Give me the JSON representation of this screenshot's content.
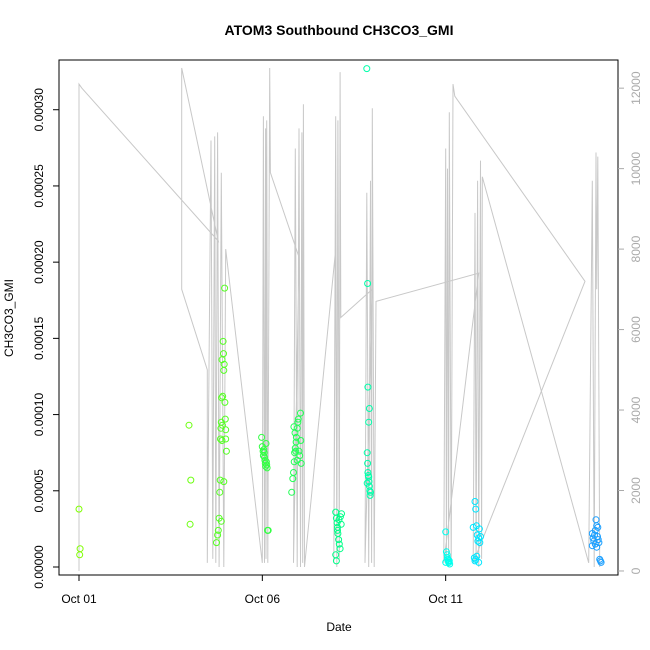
{
  "chart_data": {
    "type": "scatter",
    "title": "ATOM3 Southbound CH3CO3_GMI",
    "xlabel": "Date",
    "ylabel": "CH3CO3_GMI",
    "x_unit": "day of October 2017",
    "xlim": [
      1,
      15.7
    ],
    "ylim": [
      0,
      0.00033
    ],
    "y2lim": [
      -100,
      12700
    ],
    "grid": false,
    "x_ticks": [
      {
        "value": 1,
        "label": "Oct 01"
      },
      {
        "value": 6,
        "label": "Oct 06"
      },
      {
        "value": 11,
        "label": "Oct 11"
      }
    ],
    "y_ticks": [
      {
        "value": 0,
        "label": "0.00000"
      },
      {
        "value": 5e-05,
        "label": "0.00005"
      },
      {
        "value": 0.0001,
        "label": "0.00010"
      },
      {
        "value": 0.00015,
        "label": "0.00015"
      },
      {
        "value": 0.0002,
        "label": "0.00020"
      },
      {
        "value": 0.00025,
        "label": "0.00025"
      },
      {
        "value": 0.0003,
        "label": "0.00030"
      }
    ],
    "y2_ticks": [
      {
        "value": 0,
        "label": "0"
      },
      {
        "value": 2000,
        "label": "2000"
      },
      {
        "value": 4000,
        "label": "4000"
      },
      {
        "value": 6000,
        "label": "6000"
      },
      {
        "value": 8000,
        "label": "8000"
      },
      {
        "value": 10000,
        "label": "10000"
      },
      {
        "value": 12000,
        "label": "12000"
      }
    ],
    "colors": {
      "altitude_line": "#c8c8c8",
      "right_axis": "#aaaaaa",
      "point_palette": [
        "#7fff00",
        "#33ff33",
        "#00ff66",
        "#00ffbb",
        "#00ffff",
        "#00e0ff",
        "#1aa3ff"
      ]
    },
    "series": [
      {
        "color": "#7fff00",
        "points": [
          [
            1.0,
            3.8e-05
          ],
          [
            1.03,
            1.2e-05
          ],
          [
            1.02,
            8e-06
          ]
        ]
      },
      {
        "color": "#6cff10",
        "points": [
          [
            4.0,
            9.3e-05
          ],
          [
            4.05,
            5.7e-05
          ],
          [
            4.03,
            2.8e-05
          ]
        ]
      },
      {
        "color": "#55ff22",
        "points": [
          [
            4.75,
            1.6e-05
          ],
          [
            4.78,
            2.1e-05
          ],
          [
            4.8,
            2.4e-05
          ],
          [
            4.82,
            3.2e-05
          ],
          [
            4.84,
            4.9e-05
          ],
          [
            4.85,
            5.7e-05
          ],
          [
            4.86,
            8.4e-05
          ],
          [
            4.87,
            9.1e-05
          ],
          [
            4.88,
            9.5e-05
          ],
          [
            4.89,
            0.000111
          ],
          [
            4.9,
            0.000136
          ],
          [
            4.91,
            9.3e-05
          ],
          [
            4.92,
            0.000112
          ],
          [
            4.93,
            0.000148
          ],
          [
            4.94,
            0.00014
          ],
          [
            4.95,
            0.000129
          ],
          [
            4.96,
            0.000133
          ],
          [
            4.97,
            0.000183
          ],
          [
            4.98,
            0.000108
          ],
          [
            4.99,
            9.7e-05
          ],
          [
            5.0,
            8.4e-05
          ],
          [
            5.02,
            7.6e-05
          ],
          [
            4.9,
            8.3e-05
          ],
          [
            5.0,
            9e-05
          ],
          [
            4.95,
            5.6e-05
          ],
          [
            4.88,
            3e-05
          ]
        ]
      },
      {
        "color": "#33ff44",
        "points": [
          [
            5.98,
            8.5e-05
          ],
          [
            6.0,
            7.9e-05
          ],
          [
            6.02,
            7.6e-05
          ],
          [
            6.04,
            7.7e-05
          ],
          [
            6.05,
            7.5e-05
          ],
          [
            6.06,
            7.2e-05
          ],
          [
            6.07,
            7e-05
          ],
          [
            6.08,
            6.8e-05
          ],
          [
            6.09,
            6.6e-05
          ],
          [
            6.1,
            8.1e-05
          ],
          [
            6.11,
            6.9e-05
          ],
          [
            6.12,
            6.7e-05
          ],
          [
            6.13,
            6.5e-05
          ],
          [
            6.03,
            7.3e-05
          ],
          [
            6.14,
            2.4e-05
          ],
          [
            6.16,
            2.4e-05
          ]
        ]
      },
      {
        "color": "#22ff55",
        "points": [
          [
            6.8,
            4.9e-05
          ],
          [
            6.83,
            5.8e-05
          ],
          [
            6.85,
            6.2e-05
          ],
          [
            6.87,
            6.9e-05
          ],
          [
            6.88,
            7.5e-05
          ],
          [
            6.9,
            7.8e-05
          ],
          [
            6.92,
            8.2e-05
          ],
          [
            6.93,
            8.5e-05
          ],
          [
            6.95,
            9.1e-05
          ],
          [
            6.97,
            9.5e-05
          ],
          [
            6.98,
            9.7e-05
          ],
          [
            7.0,
            7.6e-05
          ],
          [
            7.02,
            7.3e-05
          ],
          [
            7.04,
            0.000101
          ],
          [
            7.05,
            8.3e-05
          ],
          [
            7.06,
            6.8e-05
          ],
          [
            6.86,
            9.2e-05
          ],
          [
            6.89,
            8.8e-05
          ],
          [
            6.91,
            7.6e-05
          ],
          [
            6.95,
            7e-05
          ]
        ]
      },
      {
        "color": "#00ff88",
        "points": [
          [
            8.0,
            3.6e-05
          ],
          [
            8.02,
            3.2e-05
          ],
          [
            8.04,
            2.9e-05
          ],
          [
            8.05,
            2.6e-05
          ],
          [
            8.06,
            2.2e-05
          ],
          [
            8.08,
            1.8e-05
          ],
          [
            8.1,
            1.5e-05
          ],
          [
            8.12,
            1.2e-05
          ],
          [
            8.0,
            8e-06
          ],
          [
            8.02,
            4e-06
          ],
          [
            8.13,
            3.3e-05
          ],
          [
            8.15,
            2.8e-05
          ],
          [
            8.16,
            3.5e-05
          ],
          [
            8.05,
            2.4e-05
          ],
          [
            8.09,
            3.1e-05
          ]
        ]
      },
      {
        "color": "#00ffaa",
        "points": [
          [
            8.85,
            0.000327
          ],
          [
            8.87,
            0.000186
          ],
          [
            8.88,
            0.000118
          ],
          [
            8.9,
            9.5e-05
          ],
          [
            8.92,
            0.000104
          ],
          [
            8.86,
            7.5e-05
          ],
          [
            8.87,
            6.8e-05
          ],
          [
            8.88,
            6.2e-05
          ],
          [
            8.89,
            6e-05
          ],
          [
            8.9,
            5.9e-05
          ],
          [
            8.91,
            5.6e-05
          ],
          [
            8.92,
            5.3e-05
          ],
          [
            8.93,
            5e-05
          ],
          [
            8.94,
            4.7e-05
          ],
          [
            8.95,
            4.9e-05
          ],
          [
            8.86,
            5.5e-05
          ]
        ]
      },
      {
        "color": "#00ffee",
        "points": [
          [
            11.0,
            2.3e-05
          ],
          [
            11.02,
            1e-05
          ],
          [
            11.04,
            8e-06
          ],
          [
            11.05,
            6e-06
          ],
          [
            11.06,
            5e-06
          ],
          [
            11.07,
            4e-06
          ],
          [
            11.08,
            3e-06
          ],
          [
            11.09,
            3e-06
          ],
          [
            11.1,
            4e-06
          ],
          [
            11.11,
            2e-06
          ],
          [
            11.0,
            3e-06
          ]
        ]
      },
      {
        "color": "#00e6ff",
        "points": [
          [
            11.75,
            2.6e-05
          ],
          [
            11.8,
            4.3e-05
          ],
          [
            11.82,
            3.8e-05
          ],
          [
            11.84,
            2.7e-05
          ],
          [
            11.86,
            2.1e-05
          ],
          [
            11.88,
            1.7e-05
          ],
          [
            11.9,
            1.9e-05
          ],
          [
            11.92,
            2.5e-05
          ],
          [
            11.78,
            6e-06
          ],
          [
            11.8,
            4e-06
          ],
          [
            11.82,
            5e-06
          ],
          [
            11.85,
            7e-06
          ],
          [
            11.9,
            3e-06
          ],
          [
            11.93,
            1.6e-05
          ],
          [
            11.95,
            2e-05
          ]
        ]
      },
      {
        "color": "#1a9fff",
        "points": [
          [
            15.0,
            2.2e-05
          ],
          [
            15.02,
            1.9e-05
          ],
          [
            15.04,
            1.7e-05
          ],
          [
            15.06,
            2.1e-05
          ],
          [
            15.08,
            2.4e-05
          ],
          [
            15.1,
            3.1e-05
          ],
          [
            15.12,
            2.7e-05
          ],
          [
            15.14,
            2e-05
          ],
          [
            15.16,
            1.8e-05
          ],
          [
            15.18,
            1.6e-05
          ],
          [
            15.2,
            5e-06
          ],
          [
            15.22,
            4e-06
          ],
          [
            15.24,
            3e-06
          ],
          [
            15.08,
            1.5e-05
          ],
          [
            15.12,
            1.3e-05
          ],
          [
            15.15,
            2.6e-05
          ],
          [
            15.0,
            1.4e-05
          ]
        ]
      }
    ],
    "altitude": [
      [
        1.0,
        0
      ],
      [
        1.0,
        12100
      ],
      [
        1.08,
        12000
      ],
      [
        4.8,
        8200
      ],
      [
        3.8,
        12500
      ],
      [
        3.8,
        7000
      ],
      [
        4.5,
        5000
      ],
      [
        4.5,
        200
      ],
      [
        4.6,
        10700
      ],
      [
        4.65,
        300
      ],
      [
        4.7,
        10800
      ],
      [
        4.73,
        200
      ],
      [
        4.78,
        10900
      ],
      [
        4.82,
        100
      ],
      [
        4.88,
        9900
      ],
      [
        4.95,
        100
      ],
      [
        5.0,
        8000
      ],
      [
        6.0,
        200
      ],
      [
        6.03,
        11300
      ],
      [
        6.06,
        200
      ],
      [
        6.09,
        11000
      ],
      [
        6.1,
        300
      ],
      [
        6.12,
        11200
      ],
      [
        6.15,
        200
      ],
      [
        6.2,
        12500
      ],
      [
        6.22,
        9900
      ],
      [
        7.0,
        7800
      ],
      [
        6.85,
        200
      ],
      [
        6.9,
        10500
      ],
      [
        6.95,
        100
      ],
      [
        7.0,
        11000
      ],
      [
        7.04,
        100
      ],
      [
        7.08,
        10900
      ],
      [
        7.1,
        200
      ],
      [
        7.12,
        11600
      ],
      [
        7.15,
        100
      ],
      [
        8.0,
        8000
      ],
      [
        7.95,
        200
      ],
      [
        8.0,
        11300
      ],
      [
        8.03,
        100
      ],
      [
        8.06,
        11200
      ],
      [
        8.1,
        300
      ],
      [
        8.12,
        12400
      ],
      [
        8.14,
        6300
      ],
      [
        9.0,
        7000
      ],
      [
        8.8,
        200
      ],
      [
        8.85,
        9400
      ],
      [
        8.9,
        100
      ],
      [
        8.95,
        9700
      ],
      [
        8.98,
        200
      ],
      [
        9.0,
        11500
      ],
      [
        9.05,
        100
      ],
      [
        9.1,
        6700
      ],
      [
        11.9,
        7400
      ],
      [
        10.95,
        200
      ],
      [
        11.0,
        10500
      ],
      [
        11.02,
        200
      ],
      [
        11.05,
        10000
      ],
      [
        11.08,
        100
      ],
      [
        11.1,
        11400
      ],
      [
        11.15,
        200
      ],
      [
        11.2,
        12100
      ],
      [
        11.25,
        11800
      ],
      [
        14.8,
        7200
      ],
      [
        11.75,
        200
      ],
      [
        11.8,
        8900
      ],
      [
        11.83,
        200
      ],
      [
        11.87,
        9700
      ],
      [
        11.9,
        100
      ],
      [
        11.95,
        10200
      ],
      [
        11.98,
        300
      ],
      [
        12.0,
        9800
      ],
      [
        14.9,
        200
      ],
      [
        15.0,
        9700
      ],
      [
        15.05,
        100
      ],
      [
        15.1,
        10400
      ],
      [
        15.12,
        7000
      ],
      [
        15.15,
        10300
      ],
      [
        15.2,
        100
      ]
    ]
  }
}
